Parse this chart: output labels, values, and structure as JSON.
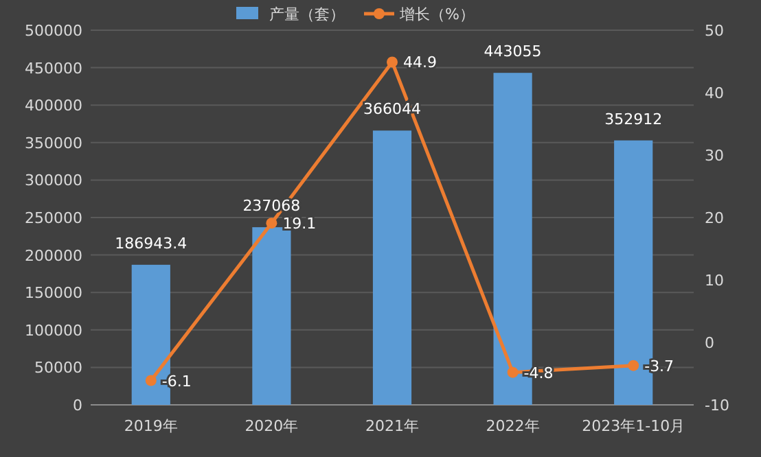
{
  "chart_data": {
    "type": "bar",
    "categories": [
      "2019年",
      "2020年",
      "2021年",
      "2022年",
      "2023年1-10月"
    ],
    "series": [
      {
        "name": "产量（套）",
        "color": "#5b9bd5",
        "values": [
          186943.4,
          237068,
          366044,
          443055,
          352912
        ]
      },
      {
        "name": "增长（%）",
        "type": "line",
        "axis": "y2",
        "color": "#ed7d31",
        "values": [
          -6.1,
          19.1,
          44.9,
          -4.8,
          -3.7
        ]
      }
    ],
    "ylim": [
      0,
      500000
    ],
    "yticks": [
      0,
      50000,
      100000,
      150000,
      200000,
      250000,
      300000,
      350000,
      400000,
      450000,
      500000
    ],
    "y2lim": [
      -10,
      50
    ],
    "y2ticks": [
      -10,
      0,
      10,
      20,
      30,
      40,
      50
    ],
    "data_labels": true,
    "legend": "top",
    "grid": "y",
    "marker": "circle",
    "line_style": "solid"
  }
}
